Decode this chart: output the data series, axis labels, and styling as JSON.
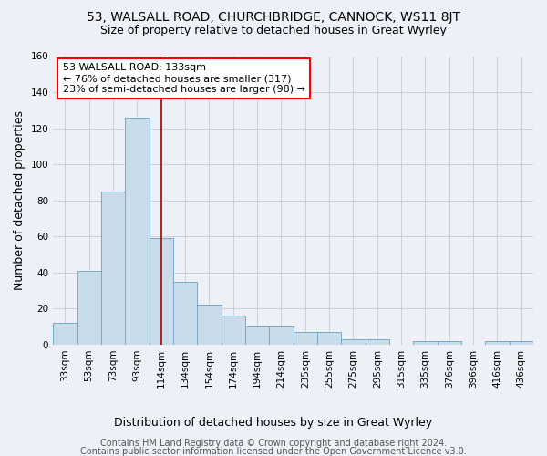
{
  "title": "53, WALSALL ROAD, CHURCHBRIDGE, CANNOCK, WS11 8JT",
  "subtitle": "Size of property relative to detached houses in Great Wyrley",
  "xlabel": "Distribution of detached houses by size in Great Wyrley",
  "ylabel": "Number of detached properties",
  "footer1": "Contains HM Land Registry data © Crown copyright and database right 2024.",
  "footer2": "Contains public sector information licensed under the Open Government Licence v3.0.",
  "annotation_line1": "53 WALSALL ROAD: 133sqm",
  "annotation_line2": "← 76% of detached houses are smaller (317)",
  "annotation_line3": "23% of semi-detached houses are larger (98) →",
  "bar_categories": [
    "33sqm",
    "53sqm",
    "73sqm",
    "93sqm",
    "114sqm",
    "134sqm",
    "154sqm",
    "174sqm",
    "194sqm",
    "214sqm",
    "235sqm",
    "255sqm",
    "275sqm",
    "295sqm",
    "315sqm",
    "335sqm",
    "376sqm",
    "396sqm",
    "416sqm",
    "436sqm"
  ],
  "bar_values": [
    12,
    41,
    85,
    126,
    59,
    35,
    22,
    16,
    10,
    10,
    7,
    7,
    3,
    3,
    0,
    2,
    2,
    0,
    2,
    2
  ],
  "bar_color": "#c9dcea",
  "bar_edge_color": "#7aaac8",
  "vline_color": "#aa0000",
  "vline_index": 4.5,
  "ylim": [
    0,
    160
  ],
  "yticks": [
    0,
    20,
    40,
    60,
    80,
    100,
    120,
    140,
    160
  ],
  "grid_color": "#c8d0dc",
  "bg_color": "#edf1f7",
  "title_fontsize": 10,
  "subtitle_fontsize": 9,
  "ylabel_fontsize": 9,
  "xlabel_fontsize": 9,
  "tick_fontsize": 7.5,
  "annotation_fontsize": 8,
  "footer_fontsize": 7
}
